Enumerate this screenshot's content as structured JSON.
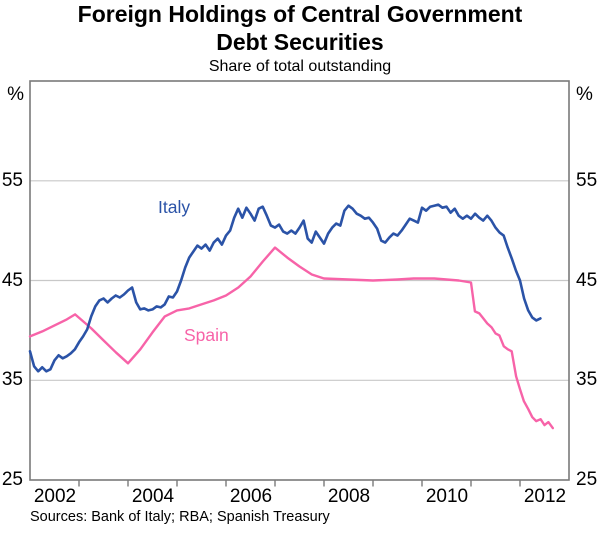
{
  "chart": {
    "title_line1": "Foreign Holdings of Central Government",
    "title_line2": "Debt Securities",
    "subtitle": "Share of total outstanding",
    "unit_left": "%",
    "unit_right": "%",
    "italy_label": "Italy",
    "spain_label": "Spain",
    "sources": "Sources: Bank of Italy; RBA; Spanish Treasury"
  },
  "colors": {
    "italy_line": "#2b53a7",
    "spain_line": "#f763a8",
    "gridline": "#c8c8c8",
    "axis_box": "#7a7a7a",
    "text": "#000000"
  },
  "chart_data": {
    "type": "line",
    "title": "Foreign Holdings of Central Government Debt Securities",
    "subtitle": "Share of total outstanding",
    "ylabel": "%",
    "ylim": [
      25,
      65
    ],
    "xlim": [
      2002,
      2013
    ],
    "yticks": [
      35,
      45,
      55
    ],
    "ybottom_label": 25,
    "xticks": [
      2003,
      2004,
      2005,
      2006,
      2007,
      2008,
      2009,
      2010,
      2011,
      2012
    ],
    "xticklabels": [
      2002,
      2004,
      2006,
      2008,
      2010,
      2012
    ],
    "grid": true,
    "legend_position": "inline-labels",
    "series": [
      {
        "name": "Spain",
        "color": "#f763a8",
        "points": [
          [
            2002.0,
            39.4
          ],
          [
            2002.25,
            39.9
          ],
          [
            2002.5,
            40.5
          ],
          [
            2002.75,
            41.1
          ],
          [
            2002.92,
            41.6
          ],
          [
            2003.25,
            40.2
          ],
          [
            2003.5,
            39.0
          ],
          [
            2003.75,
            37.8
          ],
          [
            2004.0,
            36.7
          ],
          [
            2004.25,
            38.1
          ],
          [
            2004.5,
            39.8
          ],
          [
            2004.75,
            41.4
          ],
          [
            2005.0,
            42.0
          ],
          [
            2005.25,
            42.2
          ],
          [
            2005.5,
            42.6
          ],
          [
            2005.75,
            43.0
          ],
          [
            2006.0,
            43.5
          ],
          [
            2006.25,
            44.3
          ],
          [
            2006.5,
            45.4
          ],
          [
            2006.75,
            46.9
          ],
          [
            2007.0,
            48.3
          ],
          [
            2007.25,
            47.3
          ],
          [
            2007.5,
            46.4
          ],
          [
            2007.75,
            45.6
          ],
          [
            2008.0,
            45.2
          ],
          [
            2008.5,
            45.1
          ],
          [
            2009.0,
            45.0
          ],
          [
            2009.5,
            45.1
          ],
          [
            2009.83,
            45.2
          ],
          [
            2010.25,
            45.2
          ],
          [
            2010.75,
            45.0
          ],
          [
            2011.0,
            44.8
          ],
          [
            2011.08,
            41.9
          ],
          [
            2011.17,
            41.7
          ],
          [
            2011.25,
            41.2
          ],
          [
            2011.33,
            40.7
          ],
          [
            2011.42,
            40.3
          ],
          [
            2011.5,
            39.7
          ],
          [
            2011.58,
            39.5
          ],
          [
            2011.67,
            38.4
          ],
          [
            2011.75,
            38.1
          ],
          [
            2011.83,
            37.9
          ],
          [
            2011.92,
            35.4
          ],
          [
            2012.0,
            34.1
          ],
          [
            2012.08,
            32.9
          ],
          [
            2012.17,
            32.1
          ],
          [
            2012.25,
            31.3
          ],
          [
            2012.33,
            30.9
          ],
          [
            2012.42,
            31.1
          ],
          [
            2012.5,
            30.5
          ],
          [
            2012.58,
            30.8
          ],
          [
            2012.67,
            30.2
          ]
        ]
      },
      {
        "name": "Italy",
        "color": "#2b53a7",
        "x_start": 2002.0,
        "x_step": 0.0833333,
        "values": [
          37.9,
          36.4,
          35.9,
          36.3,
          35.9,
          36.1,
          37.0,
          37.5,
          37.2,
          37.4,
          37.7,
          38.1,
          38.8,
          39.4,
          40.1,
          41.4,
          42.4,
          43.0,
          43.2,
          42.8,
          43.2,
          43.5,
          43.3,
          43.6,
          44.0,
          44.3,
          42.8,
          42.1,
          42.2,
          42.0,
          42.1,
          42.4,
          42.3,
          42.6,
          43.4,
          43.3,
          43.9,
          45.0,
          46.3,
          47.3,
          47.9,
          48.5,
          48.2,
          48.6,
          48.0,
          48.8,
          49.2,
          48.6,
          49.5,
          50.0,
          51.3,
          52.2,
          51.3,
          52.3,
          51.7,
          51.0,
          52.2,
          52.4,
          51.5,
          50.5,
          50.3,
          50.6,
          49.9,
          49.7,
          50.0,
          49.7,
          50.3,
          51.0,
          49.2,
          48.8,
          49.9,
          49.3,
          48.7,
          49.7,
          50.3,
          50.7,
          50.5,
          52.0,
          52.5,
          52.2,
          51.7,
          51.5,
          51.2,
          51.3,
          50.8,
          50.2,
          49.0,
          48.8,
          49.3,
          49.7,
          49.5,
          50.0,
          50.6,
          51.2,
          51.0,
          50.8,
          52.3,
          52.0,
          52.4,
          52.5,
          52.6,
          52.3,
          52.4,
          51.8,
          52.2,
          51.5,
          51.2,
          51.5,
          51.2,
          51.7,
          51.3,
          51.0,
          51.5,
          51.0,
          50.3,
          49.8,
          49.5,
          48.3,
          47.2,
          46.0,
          45.0,
          43.2,
          42.0,
          41.3,
          41.0,
          41.2
        ]
      }
    ]
  }
}
